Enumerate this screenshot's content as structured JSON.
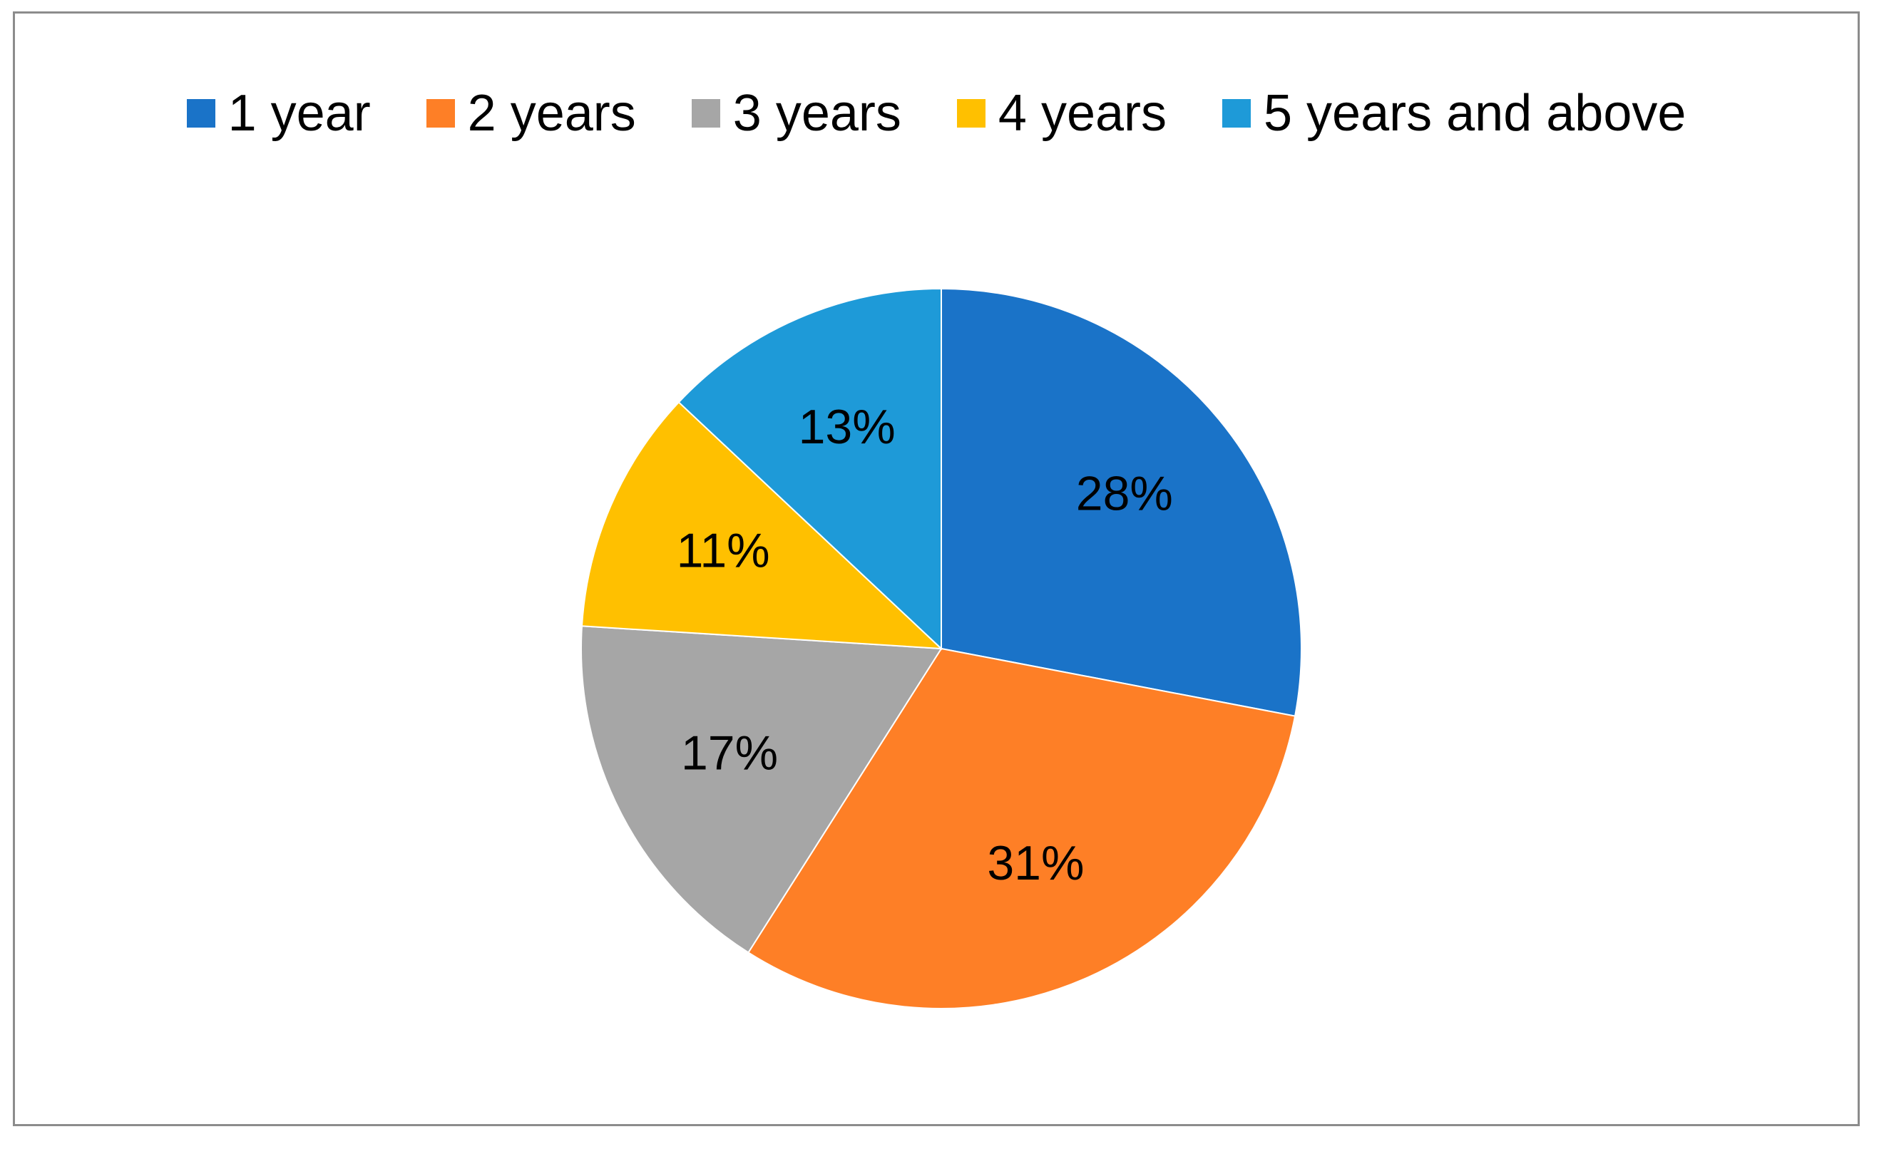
{
  "chart_data": {
    "type": "pie",
    "categories": [
      "1 year",
      "2 years",
      "3 years",
      "4 years",
      "5 years and above"
    ],
    "values": [
      28,
      31,
      17,
      11,
      13
    ],
    "labels": [
      "28%",
      "31%",
      "17%",
      "11%",
      "13%"
    ],
    "colors": [
      "#1a73c8",
      "#fe7f26",
      "#a6a6a6",
      "#ffc000",
      "#1e9ad8"
    ],
    "legend_position": "top",
    "start_angle": "12 o'clock",
    "direction": "clockwise"
  }
}
